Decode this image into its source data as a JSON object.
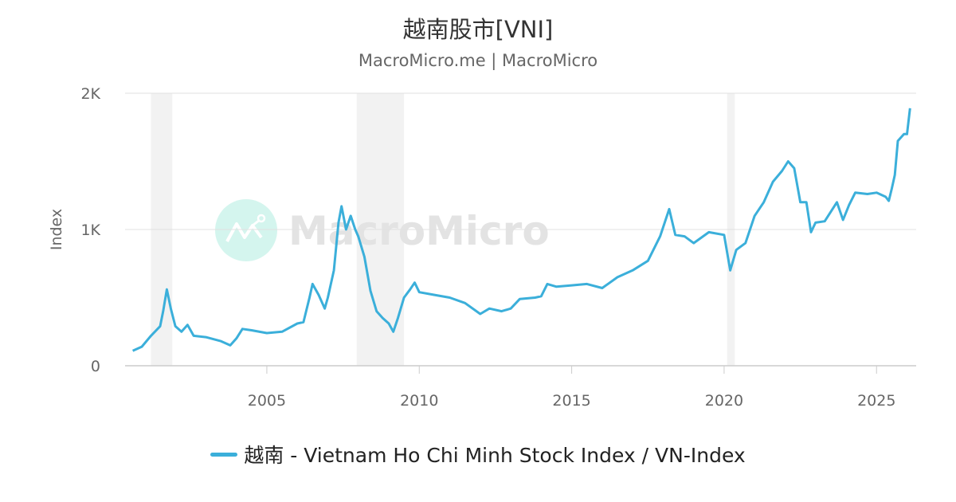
{
  "title": "越南股市[VNI]",
  "subtitle": "MacroMicro.me | MacroMicro",
  "watermark": "MacroMicro",
  "chart_data": {
    "type": "line",
    "ylabel": "Index",
    "ylim": [
      0,
      2000
    ],
    "xlim": [
      2000.35,
      2026.3
    ],
    "yticks": [
      {
        "v": 0,
        "label": "0"
      },
      {
        "v": 1000,
        "label": "1K"
      },
      {
        "v": 2000,
        "label": "2K"
      }
    ],
    "xticks": [
      2005,
      2010,
      2015,
      2020,
      2025
    ],
    "grid": true,
    "legend_position": "bottom",
    "line_color": "#3bafda",
    "shaded_periods": [
      [
        2001.2,
        2001.9
      ],
      [
        2007.95,
        2009.5
      ],
      [
        2020.1,
        2020.35
      ]
    ],
    "series": [
      {
        "name": "越南 - Vietnam Ho Chi Minh Stock Index / VN-Index",
        "x": [
          2000.6,
          2000.9,
          2001.2,
          2001.5,
          2001.6,
          2001.72,
          2001.85,
          2002.0,
          2002.2,
          2002.4,
          2002.6,
          2003.0,
          2003.5,
          2003.8,
          2004.0,
          2004.2,
          2004.5,
          2005.0,
          2005.5,
          2006.0,
          2006.2,
          2006.4,
          2006.5,
          2006.7,
          2006.9,
          2007.0,
          2007.2,
          2007.35,
          2007.45,
          2007.6,
          2007.75,
          2007.9,
          2008.0,
          2008.2,
          2008.4,
          2008.6,
          2008.8,
          2009.0,
          2009.15,
          2009.3,
          2009.5,
          2009.7,
          2009.85,
          2010.0,
          2010.5,
          2011.0,
          2011.5,
          2012.0,
          2012.3,
          2012.7,
          2013.0,
          2013.3,
          2013.8,
          2014.0,
          2014.2,
          2014.5,
          2015.0,
          2015.5,
          2016.0,
          2016.5,
          2017.0,
          2017.5,
          2017.9,
          2018.2,
          2018.4,
          2018.7,
          2019.0,
          2019.5,
          2020.0,
          2020.2,
          2020.4,
          2020.7,
          2021.0,
          2021.3,
          2021.6,
          2021.9,
          2022.1,
          2022.3,
          2022.5,
          2022.7,
          2022.85,
          2023.0,
          2023.3,
          2023.7,
          2023.9,
          2024.1,
          2024.3,
          2024.7,
          2025.0,
          2025.3,
          2025.4,
          2025.5,
          2025.6,
          2025.7,
          2025.9,
          2026.0,
          2026.1
        ],
        "values": [
          110,
          140,
          220,
          290,
          400,
          560,
          420,
          290,
          250,
          300,
          220,
          210,
          180,
          150,
          200,
          270,
          260,
          240,
          250,
          310,
          320,
          500,
          600,
          520,
          420,
          500,
          700,
          1050,
          1170,
          1000,
          1100,
          1000,
          950,
          800,
          550,
          400,
          350,
          310,
          250,
          350,
          500,
          560,
          610,
          540,
          520,
          500,
          460,
          380,
          420,
          400,
          420,
          490,
          500,
          510,
          600,
          580,
          590,
          600,
          570,
          650,
          700,
          770,
          950,
          1150,
          960,
          950,
          900,
          980,
          960,
          700,
          850,
          900,
          1100,
          1200,
          1350,
          1430,
          1500,
          1450,
          1200,
          1200,
          980,
          1050,
          1060,
          1200,
          1070,
          1180,
          1270,
          1260,
          1270,
          1240,
          1210,
          1300,
          1400,
          1650,
          1700,
          1700,
          1890
        ]
      }
    ]
  }
}
